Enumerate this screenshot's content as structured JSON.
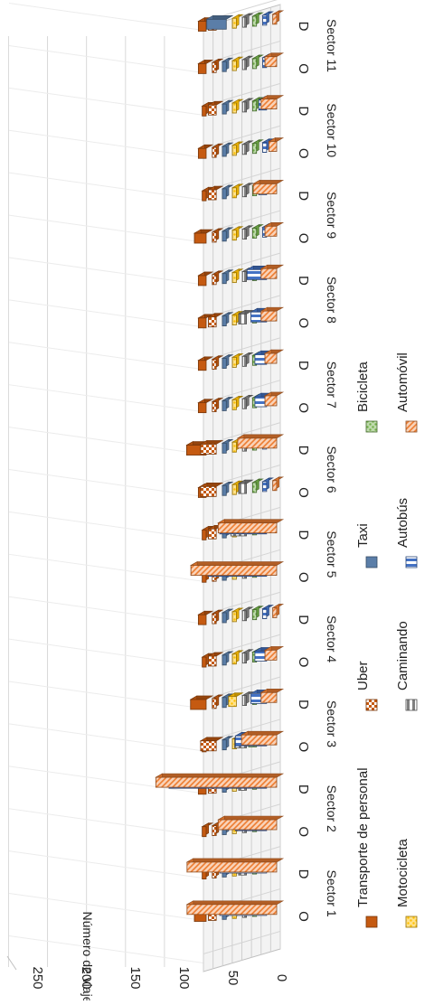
{
  "chart_data": {
    "type": "bar",
    "ylabel": "Número de viajes",
    "ylim": [
      0,
      250
    ],
    "y_ticks": [
      "0",
      "50",
      "100",
      "150",
      "200",
      "250"
    ],
    "groups": [
      "Sector 1",
      "Sector 2",
      "Sector 3",
      "Sector 4",
      "Sector 5",
      "Sector 6",
      "Sector 7",
      "Sector 8",
      "Sector 9",
      "Sector 10",
      "Sector 11"
    ],
    "categories": [
      "O",
      "D",
      "O",
      "D",
      "O",
      "D",
      "O",
      "D",
      "O",
      "D",
      "O",
      "D",
      "O",
      "D",
      "O",
      "D",
      "O",
      "D",
      "O",
      "D",
      "O",
      "D"
    ],
    "series": [
      {
        "name": "Transporte de personal",
        "color": "#c55a11",
        "pattern": "solid",
        "values": [
          15,
          5,
          5,
          10,
          5,
          20,
          5,
          10,
          5,
          5,
          10,
          25,
          10,
          10,
          10,
          10,
          15,
          5,
          10,
          5,
          10,
          10
        ]
      },
      {
        "name": "Uber",
        "color": "#c55a11",
        "pattern": "check",
        "values": [
          10,
          5,
          5,
          10,
          20,
          5,
          10,
          5,
          5,
          10,
          20,
          20,
          5,
          5,
          10,
          5,
          5,
          10,
          5,
          10,
          5,
          10
        ]
      },
      {
        "name": "Taxi",
        "color": "#5b7ea8",
        "pattern": "solid",
        "values": [
          5,
          5,
          5,
          5,
          5,
          5,
          5,
          5,
          5,
          5,
          5,
          5,
          5,
          5,
          5,
          5,
          5,
          5,
          5,
          5,
          5,
          25
        ]
      },
      {
        "name": "Motocicleta",
        "color": "#ffc000",
        "pattern": "dots",
        "values": [
          5,
          5,
          5,
          5,
          5,
          10,
          5,
          5,
          5,
          5,
          5,
          5,
          5,
          5,
          5,
          5,
          5,
          5,
          5,
          5,
          5,
          5
        ]
      },
      {
        "name": "Caminando",
        "color": "#808080",
        "pattern": "hstripe",
        "values": [
          5,
          10,
          5,
          10,
          15,
          5,
          5,
          5,
          5,
          20,
          10,
          5,
          5,
          5,
          10,
          5,
          5,
          5,
          5,
          5,
          5,
          5
        ]
      },
      {
        "name": "Bicicleta",
        "color": "#70ad47",
        "pattern": "dots",
        "values": [
          5,
          5,
          5,
          5,
          10,
          5,
          5,
          5,
          5,
          5,
          5,
          5,
          5,
          5,
          5,
          5,
          5,
          5,
          5,
          5,
          5,
          5
        ]
      },
      {
        "name": "Autobús",
        "color": "#4472c4",
        "pattern": "vstripe",
        "values": [
          60,
          60,
          40,
          125,
          40,
          20,
          15,
          5,
          75,
          60,
          5,
          5,
          15,
          15,
          20,
          25,
          5,
          10,
          5,
          10,
          5,
          5
        ]
      },
      {
        "name": "Automóvil",
        "color": "#ed7d31",
        "pattern": "diag",
        "values": [
          115,
          115,
          75,
          155,
          45,
          20,
          15,
          5,
          110,
          75,
          5,
          50,
          15,
          15,
          20,
          20,
          15,
          30,
          10,
          20,
          15,
          5
        ]
      }
    ],
    "legend": {
      "position": "bottom",
      "items": [
        "Transporte de personal",
        "Uber",
        "Taxi",
        "Motocicleta",
        "Caminando",
        "Bicicleta",
        "Autobús",
        "Automóvil"
      ]
    },
    "grid": true,
    "orientation": "rotated 90° clockwise, 3D perspective"
  }
}
